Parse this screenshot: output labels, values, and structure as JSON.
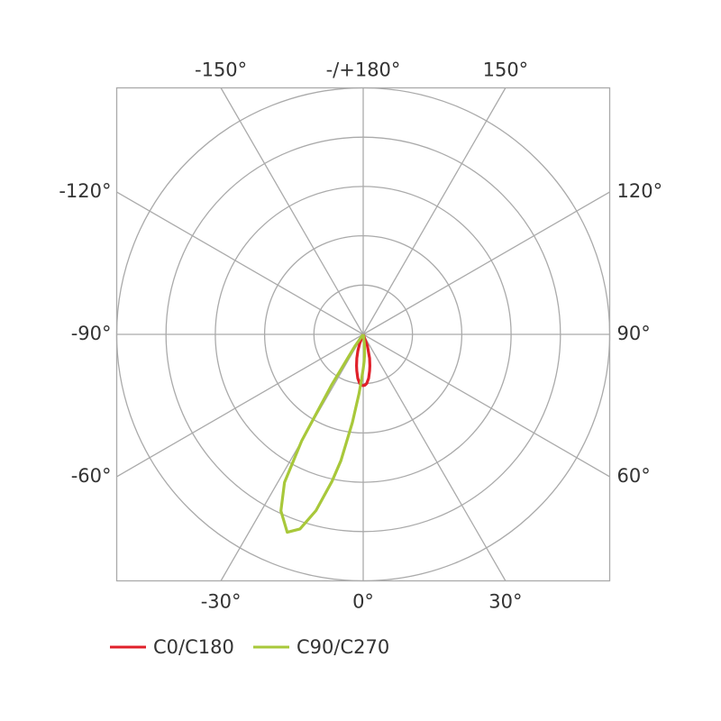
{
  "chart_data": {
    "type": "polar",
    "angle_ticks": [
      {
        "value": -150,
        "label": "-150°"
      },
      {
        "value": 180,
        "label": "-/+180°"
      },
      {
        "value": 150,
        "label": "150°"
      },
      {
        "value": -120,
        "label": "-120°"
      },
      {
        "value": 120,
        "label": "120°"
      },
      {
        "value": -90,
        "label": "-90°"
      },
      {
        "value": 90,
        "label": "90°"
      },
      {
        "value": -60,
        "label": "-60°"
      },
      {
        "value": 60,
        "label": "60°"
      },
      {
        "value": -30,
        "label": "-30°"
      },
      {
        "value": 0,
        "label": "0°"
      },
      {
        "value": 30,
        "label": "30°"
      }
    ],
    "rlim": [
      0,
      5
    ],
    "rticks": [
      1,
      2,
      3,
      4,
      5
    ],
    "grid": true,
    "theta": [
      -40,
      -35,
      -32,
      -30,
      -28,
      -25,
      -21,
      -18,
      -15,
      -12,
      -10,
      -7,
      -4,
      -2,
      0,
      2,
      4,
      7,
      10,
      12,
      15,
      20,
      25
    ],
    "series": [
      {
        "name": "C0/C180",
        "color": "#e0202a",
        "values": [
          0,
          0,
          0,
          0,
          0,
          0,
          0.2,
          0.35,
          0.5,
          0.65,
          0.75,
          0.9,
          1.0,
          1.03,
          1.04,
          1.03,
          1.0,
          0.9,
          0.75,
          0.65,
          0.5,
          0.25,
          0
        ]
      },
      {
        "name": "C90/C270",
        "color": "#a8c83a",
        "values": [
          0,
          0.3,
          1.2,
          2.5,
          3.4,
          3.95,
          4.3,
          4.15,
          3.7,
          3.05,
          2.6,
          1.8,
          1.2,
          0.9,
          0.7,
          0.55,
          0.4,
          0.2,
          0.05,
          0,
          0,
          0,
          0
        ]
      }
    ]
  }
}
